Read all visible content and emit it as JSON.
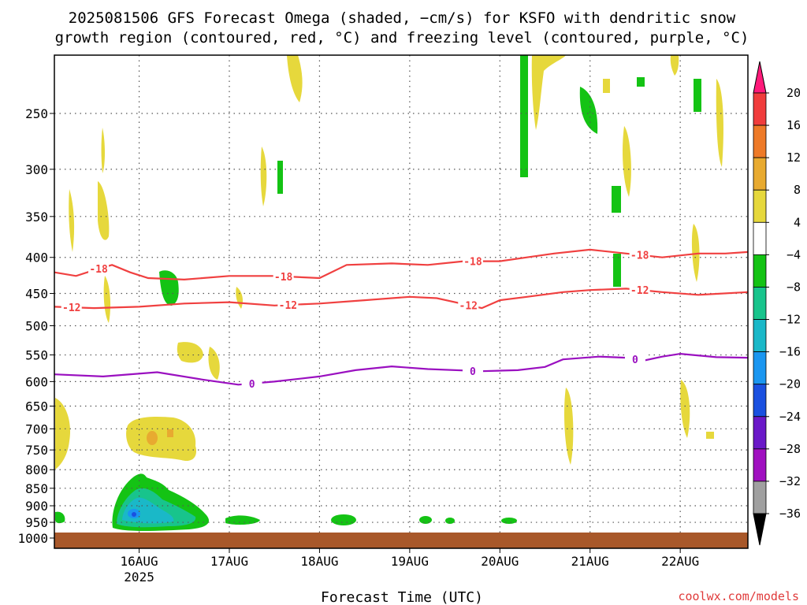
{
  "chart_data": {
    "type": "heatmap",
    "title_line1": "2025081506 GFS Forecast Omega (shaded, −cm/s) for KSFO with dendritic snow",
    "title_line2": "growth region (contoured, red, °C) and freezing level (contoured, purple, °C)",
    "xlabel": "Forecast Time (UTC)",
    "credit": "coolwx.com/models",
    "x_ticks": [
      {
        "label": "16AUG",
        "sub": "2025",
        "day": 16
      },
      {
        "label": "17AUG",
        "sub": "",
        "day": 17
      },
      {
        "label": "18AUG",
        "sub": "",
        "day": 18
      },
      {
        "label": "19AUG",
        "sub": "",
        "day": 19
      },
      {
        "label": "20AUG",
        "sub": "",
        "day": 20
      },
      {
        "label": "21AUG",
        "sub": "",
        "day": 21
      },
      {
        "label": "22AUG",
        "sub": "",
        "day": 22
      }
    ],
    "xlim_day": [
      15.06,
      22.75
    ],
    "y_ticks": [
      250,
      300,
      350,
      400,
      450,
      500,
      550,
      600,
      650,
      700,
      750,
      800,
      850,
      900,
      950,
      1000
    ],
    "ylim_hpa": [
      200,
      1000
    ],
    "y_scale": "log",
    "colorbar": {
      "labels": [
        "20",
        "16",
        "12",
        "8",
        "4",
        "−4",
        "−8",
        "−12",
        "−16",
        "−20",
        "−24",
        "−28",
        "−32",
        "−36"
      ],
      "colors": [
        "#ff1a7a",
        "#f03c3c",
        "#ee7a28",
        "#e8aa30",
        "#e6d83c",
        "#ffffff",
        "#14c314",
        "#18c48c",
        "#1ab8c8",
        "#1a96f0",
        "#1a50e0",
        "#6a18c8",
        "#a010c0",
        "#a0a0a0",
        "#000000"
      ]
    },
    "contours": [
      {
        "label": "-18",
        "color": "#f04040",
        "points": [
          [
            15.06,
            420
          ],
          [
            15.3,
            425
          ],
          [
            15.55,
            415
          ],
          [
            15.7,
            410
          ],
          [
            15.9,
            420
          ],
          [
            16.1,
            428
          ],
          [
            16.5,
            430
          ],
          [
            17,
            425
          ],
          [
            17.5,
            425
          ],
          [
            18,
            428
          ],
          [
            18.3,
            410
          ],
          [
            18.8,
            408
          ],
          [
            19.2,
            410
          ],
          [
            19.6,
            405
          ],
          [
            20,
            405
          ],
          [
            20.3,
            400
          ],
          [
            20.6,
            395
          ],
          [
            21,
            390
          ],
          [
            21.4,
            395
          ],
          [
            21.8,
            400
          ],
          [
            22.2,
            395
          ],
          [
            22.5,
            395
          ],
          [
            22.75,
            393
          ]
        ],
        "label_at": [
          [
            15.55,
            0
          ],
          [
            17.6,
            0
          ],
          [
            19.7,
            0
          ],
          [
            21.55,
            0
          ]
        ]
      },
      {
        "label": "-12",
        "color": "#f04040",
        "points": [
          [
            15.06,
            470
          ],
          [
            15.5,
            472
          ],
          [
            16,
            470
          ],
          [
            16.5,
            465
          ],
          [
            17,
            463
          ],
          [
            17.5,
            468
          ],
          [
            18,
            465
          ],
          [
            18.5,
            460
          ],
          [
            19,
            455
          ],
          [
            19.3,
            457
          ],
          [
            19.8,
            472
          ],
          [
            20,
            460
          ],
          [
            20.3,
            455
          ],
          [
            20.7,
            448
          ],
          [
            21,
            445
          ],
          [
            21.4,
            443
          ],
          [
            21.8,
            448
          ],
          [
            22.2,
            452
          ],
          [
            22.75,
            448
          ]
        ],
        "label_at": [
          [
            15.25,
            0
          ],
          [
            17.65,
            0
          ],
          [
            19.65,
            0
          ],
          [
            21.55,
            0
          ]
        ]
      },
      {
        "label": "0",
        "color": "#9a10c0",
        "points": [
          [
            15.06,
            586
          ],
          [
            15.6,
            590
          ],
          [
            16.2,
            582
          ],
          [
            16.7,
            596
          ],
          [
            17.1,
            606
          ],
          [
            17.5,
            600
          ],
          [
            18,
            590
          ],
          [
            18.4,
            578
          ],
          [
            18.8,
            571
          ],
          [
            19.2,
            576
          ],
          [
            19.8,
            580
          ],
          [
            20.2,
            578
          ],
          [
            20.5,
            572
          ],
          [
            20.7,
            558
          ],
          [
            21.1,
            553
          ],
          [
            21.4,
            555
          ],
          [
            21.6,
            560
          ],
          [
            21.8,
            553
          ],
          [
            22,
            548
          ],
          [
            22.4,
            554
          ],
          [
            22.75,
            555
          ]
        ],
        "label_at": [
          [
            17.25,
            0
          ],
          [
            19.7,
            0
          ],
          [
            21.5,
            0
          ]
        ]
      }
    ]
  }
}
